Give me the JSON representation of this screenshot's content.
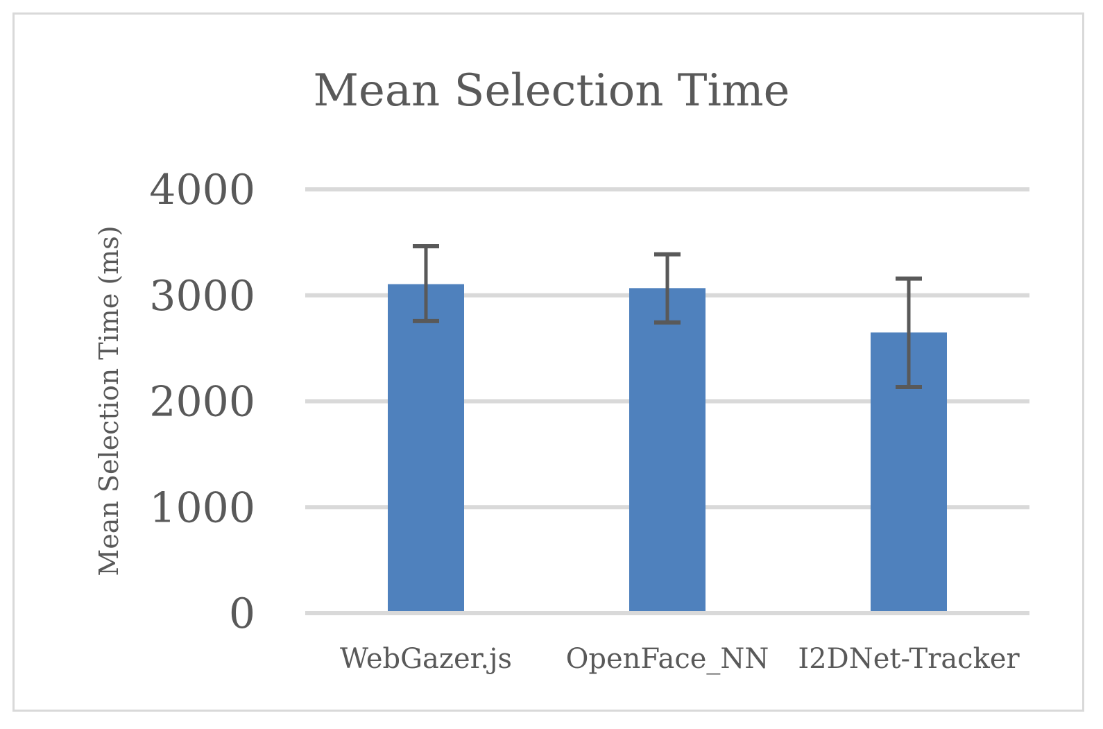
{
  "chart_data": {
    "type": "bar",
    "title": "Mean Selection Time",
    "xlabel": "",
    "ylabel": "Mean Selection Time (ms)",
    "categories": [
      "WebGazer.js",
      "OpenFace_NN",
      "I2DNet-Tracker"
    ],
    "values": [
      3105,
      3068,
      2649
    ],
    "error_bars": {
      "upper": [
        3463,
        3387,
        3158
      ],
      "lower": [
        2757,
        2744,
        2134
      ]
    },
    "ylim": [
      0,
      4000
    ],
    "yticks": [
      0,
      1000,
      2000,
      3000,
      4000
    ],
    "grid": true,
    "legend": "none",
    "colors": {
      "bar": "#4f81bd",
      "error_bar": "#595959",
      "grid": "#d9d9d9",
      "text": "#595959"
    }
  }
}
